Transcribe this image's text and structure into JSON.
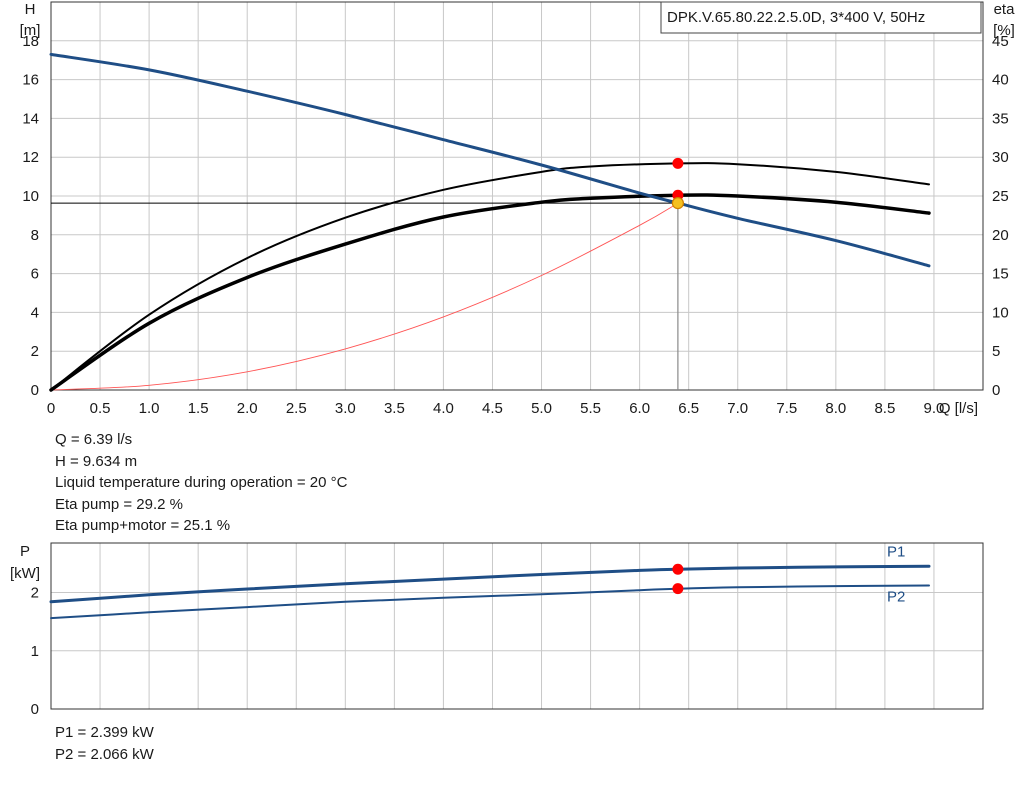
{
  "model_label": "DPK.V.65.80.22.2.5.0D, 3*400 V, 50Hz",
  "operating_point_text": [
    "Q = 6.39 l/s",
    "H = 9.634 m",
    "Liquid temperature during operation = 20 °C",
    "Eta pump = 29.2 %",
    "Eta pump+motor = 25.1 %"
  ],
  "power_text": [
    "P1 = 2.399 kW",
    "P2 = 2.066 kW"
  ],
  "colors": {
    "head_curve": "#1f4e86",
    "efficiency_curves": "#000000",
    "system_curve": "#ff5555",
    "operating_point": "#ff0000",
    "duty_marker": "#f4c020",
    "grid": "#c8c8c8"
  },
  "chart_data": [
    {
      "type": "line",
      "x_axis": {
        "label": "Q [l/s]",
        "range": [
          0,
          9.5
        ],
        "ticks": [
          "0",
          "0.5",
          "1.0",
          "1.5",
          "2.0",
          "2.5",
          "3.0",
          "3.5",
          "4.0",
          "4.5",
          "5.0",
          "5.5",
          "6.0",
          "6.5",
          "7.0",
          "7.5",
          "8.0",
          "8.5",
          "9.0"
        ]
      },
      "y_axis_left": {
        "label": "H",
        "unit": "[m]",
        "range": [
          0,
          20
        ],
        "ticks": [
          "0",
          "2",
          "4",
          "6",
          "8",
          "10",
          "12",
          "14",
          "16",
          "18"
        ]
      },
      "y_axis_right": {
        "label": "eta",
        "unit": "[%]",
        "range": [
          0,
          50
        ],
        "ticks": [
          "0",
          "5",
          "10",
          "15",
          "20",
          "25",
          "30",
          "35",
          "40",
          "45"
        ]
      },
      "grid": true,
      "series": [
        {
          "axis": "left",
          "style": "head",
          "x": [
            0,
            1,
            2,
            3,
            4,
            5,
            6,
            6.39,
            7,
            8,
            8.95
          ],
          "y": [
            17.3,
            16.5,
            15.4,
            14.2,
            12.9,
            11.6,
            10.15,
            9.634,
            8.85,
            7.7,
            6.4
          ]
        },
        {
          "axis": "right",
          "style": "eta_pump",
          "x": [
            0,
            1,
            2,
            3,
            4,
            5,
            5.5,
            6.39,
            7,
            8,
            8.95
          ],
          "y": [
            0,
            9.7,
            17.0,
            22.2,
            25.8,
            28.1,
            28.8,
            29.2,
            29.1,
            28.1,
            26.5
          ]
        },
        {
          "axis": "right",
          "style": "eta_total",
          "x": [
            0,
            1,
            2,
            3,
            4,
            5,
            5.5,
            6.39,
            7,
            8,
            8.95
          ],
          "y": [
            0,
            8.6,
            14.5,
            18.8,
            22.3,
            24.2,
            24.7,
            25.1,
            25.0,
            24.2,
            22.8
          ]
        },
        {
          "axis": "left",
          "style": "system",
          "x": [
            0,
            1,
            2,
            3,
            4,
            5,
            6,
            6.39
          ],
          "y": [
            0,
            0.24,
            0.94,
            2.12,
            3.77,
            5.9,
            8.49,
            9.634
          ]
        }
      ],
      "operating_point": {
        "q": 6.39,
        "h": 9.634,
        "eta_pump": 29.2,
        "eta_total": 25.1
      }
    },
    {
      "type": "line",
      "x_axis": {
        "range": [
          0,
          9.5
        ]
      },
      "y_axis": {
        "label": "P",
        "unit": "[kW]",
        "range": [
          0,
          2.85
        ],
        "ticks": [
          "0",
          "1",
          "2"
        ]
      },
      "grid": true,
      "series": [
        {
          "name": "P1",
          "x": [
            0,
            1,
            2,
            3,
            4,
            5,
            6,
            6.39,
            7,
            8,
            8.95
          ],
          "y": [
            1.84,
            1.96,
            2.06,
            2.15,
            2.23,
            2.31,
            2.38,
            2.399,
            2.42,
            2.44,
            2.45
          ]
        },
        {
          "name": "P2",
          "x": [
            0,
            1,
            2,
            3,
            4,
            5,
            6,
            6.39,
            7,
            8,
            8.95
          ],
          "y": [
            1.56,
            1.66,
            1.75,
            1.84,
            1.91,
            1.97,
            2.04,
            2.066,
            2.09,
            2.11,
            2.12
          ]
        }
      ],
      "operating_point": {
        "q": 6.39,
        "p1": 2.399,
        "p2": 2.066
      }
    }
  ]
}
